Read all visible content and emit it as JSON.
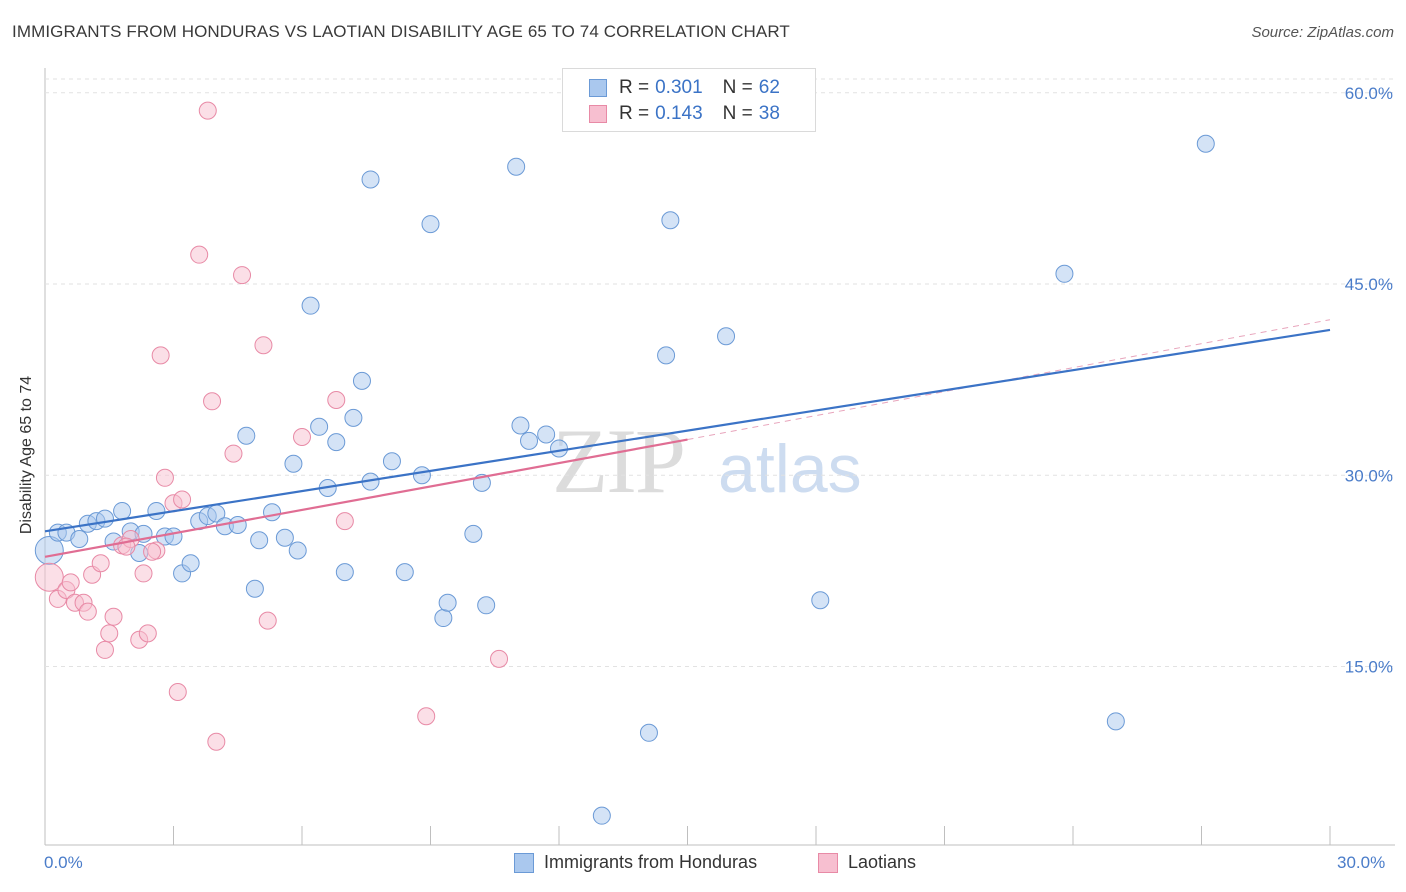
{
  "header": {
    "title": "IMMIGRANTS FROM HONDURAS VS LAOTIAN DISABILITY AGE 65 TO 74 CORRELATION CHART",
    "source": "Source: ZipAtlas.com"
  },
  "watermark": {
    "part1": "ZIP",
    "part2": "atlas"
  },
  "legend": {
    "rows": [
      {
        "r_label": "R =",
        "r_value": "0.301",
        "n_label": "N =",
        "n_value": "62",
        "color": "#aac8ee",
        "stroke": "#6b9ad6"
      },
      {
        "r_label": "R =",
        "r_value": "0.143",
        "n_label": "N =",
        "n_value": "38",
        "color": "#f7bfd0",
        "stroke": "#e88aa6"
      }
    ]
  },
  "bottom_legend": [
    {
      "label": "Immigrants from Honduras",
      "color": "#aac8ee",
      "stroke": "#6b9ad6"
    },
    {
      "label": "Laotians",
      "color": "#f7bfd0",
      "stroke": "#e88aa6"
    }
  ],
  "chart_data": {
    "type": "scatter",
    "title": "IMMIGRANTS FROM HONDURAS VS LAOTIAN DISABILITY AGE 65 TO 74 CORRELATION CHART",
    "xlabel": "",
    "ylabel": "Disability Age 65 to 74",
    "xlim": [
      0,
      30
    ],
    "ylim": [
      1,
      61
    ],
    "x_tick_labels": [
      "0.0%",
      "30.0%"
    ],
    "y_ticks": [
      15,
      30,
      45,
      60
    ],
    "y_tick_labels": [
      "15.0%",
      "30.0%",
      "45.0%",
      "60.0%"
    ],
    "grid": "horizontal dashed",
    "legend_position": "top-center",
    "series": [
      {
        "name": "Immigrants from Honduras",
        "color": "#aac8ee",
        "stroke": "#6b9ad6",
        "line_color": "#3b73c6",
        "trend": {
          "x": [
            0,
            30
          ],
          "y": [
            25.6,
            41.4
          ]
        },
        "points": [
          {
            "x": 0.1,
            "y": 24.1,
            "big": true
          },
          {
            "x": 0.3,
            "y": 25.5
          },
          {
            "x": 0.5,
            "y": 25.5
          },
          {
            "x": 0.8,
            "y": 25.0
          },
          {
            "x": 1.0,
            "y": 26.2
          },
          {
            "x": 1.2,
            "y": 26.4
          },
          {
            "x": 1.4,
            "y": 26.6
          },
          {
            "x": 1.6,
            "y": 24.8
          },
          {
            "x": 1.8,
            "y": 27.2
          },
          {
            "x": 2.0,
            "y": 25.6
          },
          {
            "x": 2.2,
            "y": 23.9
          },
          {
            "x": 2.3,
            "y": 25.4
          },
          {
            "x": 2.6,
            "y": 27.2
          },
          {
            "x": 2.8,
            "y": 25.2
          },
          {
            "x": 3.0,
            "y": 25.2
          },
          {
            "x": 3.2,
            "y": 22.3
          },
          {
            "x": 3.4,
            "y": 23.1
          },
          {
            "x": 3.6,
            "y": 26.4
          },
          {
            "x": 3.8,
            "y": 26.8
          },
          {
            "x": 4.0,
            "y": 27.0
          },
          {
            "x": 4.2,
            "y": 26.0
          },
          {
            "x": 4.5,
            "y": 26.1
          },
          {
            "x": 4.7,
            "y": 33.1
          },
          {
            "x": 5.0,
            "y": 24.9
          },
          {
            "x": 4.9,
            "y": 21.1
          },
          {
            "x": 5.3,
            "y": 27.1
          },
          {
            "x": 5.6,
            "y": 25.1
          },
          {
            "x": 5.8,
            "y": 30.9
          },
          {
            "x": 5.9,
            "y": 24.1
          },
          {
            "x": 6.2,
            "y": 43.3
          },
          {
            "x": 6.4,
            "y": 33.8
          },
          {
            "x": 6.6,
            "y": 29.0
          },
          {
            "x": 6.8,
            "y": 32.6
          },
          {
            "x": 7.0,
            "y": 22.4
          },
          {
            "x": 7.2,
            "y": 34.5
          },
          {
            "x": 7.4,
            "y": 37.4
          },
          {
            "x": 7.6,
            "y": 29.5
          },
          {
            "x": 7.6,
            "y": 53.2
          },
          {
            "x": 8.1,
            "y": 31.1
          },
          {
            "x": 8.4,
            "y": 22.4
          },
          {
            "x": 8.8,
            "y": 30.0
          },
          {
            "x": 9.0,
            "y": 49.7
          },
          {
            "x": 9.3,
            "y": 18.8
          },
          {
            "x": 9.4,
            "y": 20.0
          },
          {
            "x": 10.0,
            "y": 25.4
          },
          {
            "x": 10.2,
            "y": 29.4
          },
          {
            "x": 10.3,
            "y": 19.8
          },
          {
            "x": 11.0,
            "y": 54.2
          },
          {
            "x": 11.1,
            "y": 33.9
          },
          {
            "x": 11.3,
            "y": 32.7
          },
          {
            "x": 11.7,
            "y": 33.2
          },
          {
            "x": 12.0,
            "y": 32.1
          },
          {
            "x": 13.0,
            "y": 3.3
          },
          {
            "x": 14.1,
            "y": 9.8
          },
          {
            "x": 14.5,
            "y": 39.4
          },
          {
            "x": 14.6,
            "y": 50.0
          },
          {
            "x": 15.9,
            "y": 40.9
          },
          {
            "x": 18.1,
            "y": 20.2
          },
          {
            "x": 23.8,
            "y": 45.8
          },
          {
            "x": 25.0,
            "y": 10.7
          },
          {
            "x": 27.1,
            "y": 56.0
          }
        ]
      },
      {
        "name": "Laotians",
        "color": "#f7bfd0",
        "stroke": "#e88aa6",
        "line_color": "#e06d93",
        "trend": {
          "x": [
            0,
            15
          ],
          "y": [
            23.6,
            32.8
          ]
        },
        "trend_dashed": {
          "x": [
            15,
            30
          ],
          "y": [
            32.8,
            42.2
          ]
        },
        "points": [
          {
            "x": 0.1,
            "y": 22.0,
            "big": true
          },
          {
            "x": 0.3,
            "y": 20.3
          },
          {
            "x": 0.5,
            "y": 21.0
          },
          {
            "x": 0.6,
            "y": 21.6
          },
          {
            "x": 0.7,
            "y": 20.0
          },
          {
            "x": 0.9,
            "y": 20.0
          },
          {
            "x": 1.0,
            "y": 19.3
          },
          {
            "x": 1.1,
            "y": 22.2
          },
          {
            "x": 1.3,
            "y": 23.1
          },
          {
            "x": 1.4,
            "y": 16.3
          },
          {
            "x": 1.5,
            "y": 17.6
          },
          {
            "x": 1.6,
            "y": 18.9
          },
          {
            "x": 1.8,
            "y": 24.5
          },
          {
            "x": 2.0,
            "y": 25.0
          },
          {
            "x": 2.2,
            "y": 17.1
          },
          {
            "x": 2.3,
            "y": 22.3
          },
          {
            "x": 2.4,
            "y": 17.6
          },
          {
            "x": 2.6,
            "y": 24.1
          },
          {
            "x": 2.7,
            "y": 39.4
          },
          {
            "x": 2.8,
            "y": 29.8
          },
          {
            "x": 3.0,
            "y": 27.8
          },
          {
            "x": 3.1,
            "y": 13.0
          },
          {
            "x": 3.2,
            "y": 28.1
          },
          {
            "x": 3.6,
            "y": 47.3
          },
          {
            "x": 3.8,
            "y": 58.6
          },
          {
            "x": 3.9,
            "y": 35.8
          },
          {
            "x": 4.0,
            "y": 9.1
          },
          {
            "x": 4.4,
            "y": 31.7
          },
          {
            "x": 4.6,
            "y": 45.7
          },
          {
            "x": 5.1,
            "y": 40.2
          },
          {
            "x": 5.2,
            "y": 18.6
          },
          {
            "x": 6.0,
            "y": 33.0
          },
          {
            "x": 6.8,
            "y": 35.9
          },
          {
            "x": 7.0,
            "y": 26.4
          },
          {
            "x": 8.9,
            "y": 11.1
          },
          {
            "x": 10.6,
            "y": 15.6
          },
          {
            "x": 2.5,
            "y": 24.0
          },
          {
            "x": 1.9,
            "y": 24.4
          }
        ]
      }
    ]
  }
}
